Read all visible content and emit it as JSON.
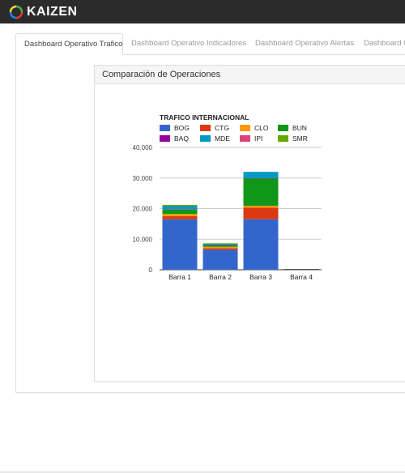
{
  "app": {
    "logo_text": "KAIZEN"
  },
  "tabs": [
    {
      "label": "Dashboard Operativo Trafico",
      "active": true
    },
    {
      "label": "Dashboard Operativo Indicadores",
      "active": false
    },
    {
      "label": "Dashboard Operativo Alertas",
      "active": false
    },
    {
      "label": "Dashboard O",
      "active": false
    }
  ],
  "card": {
    "title": "Comparación de Operaciones"
  },
  "chart_data": {
    "type": "bar",
    "stacked": true,
    "title": "TRAFICO INTERNACIONAL",
    "legend_position": "top",
    "grid": true,
    "categories": [
      "Barra 1",
      "Barra 2",
      "Barra 3",
      "Barra 4"
    ],
    "ylim": [
      0,
      40000
    ],
    "yticks": [
      "0",
      "10.000",
      "20.000",
      "30.000",
      "40.000"
    ],
    "series": [
      {
        "name": "BOG",
        "color": "#3366cc",
        "values": [
          16500,
          6500,
          16500,
          0
        ]
      },
      {
        "name": "CTG",
        "color": "#dc3912",
        "values": [
          1000,
          500,
          3800,
          0
        ]
      },
      {
        "name": "CLO",
        "color": "#ff9900",
        "values": [
          700,
          500,
          600,
          0
        ]
      },
      {
        "name": "BUN",
        "color": "#109618",
        "values": [
          1500,
          600,
          9000,
          0
        ]
      },
      {
        "name": "BAQ",
        "color": "#990099",
        "values": [
          100,
          50,
          100,
          0
        ]
      },
      {
        "name": "MDE",
        "color": "#0099c6",
        "values": [
          1000,
          300,
          2000,
          0
        ]
      },
      {
        "name": "IPI",
        "color": "#dd4477",
        "values": [
          0,
          0,
          0,
          0
        ]
      },
      {
        "name": "SMR",
        "color": "#66aa00",
        "values": [
          400,
          200,
          0,
          0
        ]
      }
    ]
  }
}
